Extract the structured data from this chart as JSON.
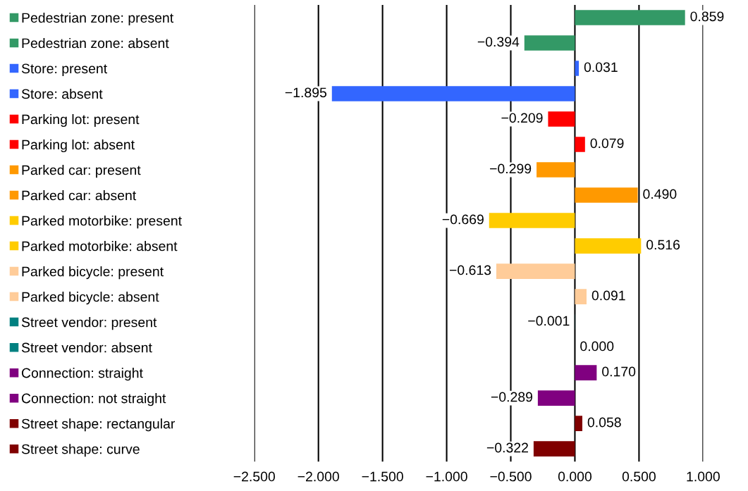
{
  "chart_data": {
    "type": "bar",
    "orientation": "horizontal",
    "categories": [
      "Pedestrian zone: present",
      "Pedestrian zone: absent",
      "Store: present",
      "Store: absent",
      "Parking lot: present",
      "Parking lot: absent",
      "Parked car: present",
      "Parked car: absent",
      "Parked motorbike: present",
      "Parked motorbike: absent",
      "Parked bicycle: present",
      "Parked bicycle: absent",
      "Street vendor: present",
      "Street vendor: absent",
      "Connection: straight",
      "Connection: not straight",
      "Street shape: rectangular",
      "Street shape: curve"
    ],
    "values": [
      0.859,
      -0.394,
      0.031,
      -1.895,
      -0.209,
      0.079,
      -0.299,
      0.49,
      -0.669,
      0.516,
      -0.613,
      0.091,
      -0.001,
      0.0,
      0.17,
      -0.289,
      0.058,
      -0.322
    ],
    "value_labels": [
      "0.859",
      "−0.394",
      "0.031",
      "−1.895",
      "−0.209",
      "0.079",
      "−0.299",
      "0.490",
      "−0.669",
      "0.516",
      "−0.613",
      "0.091",
      "−0.001",
      "0.000",
      "0.170",
      "−0.289",
      "0.058",
      "−0.322"
    ],
    "colors": [
      "#339966",
      "#339966",
      "#3366ff",
      "#3366ff",
      "#ff0000",
      "#ff0000",
      "#ff9900",
      "#ff9900",
      "#ffcc00",
      "#ffcc00",
      "#ffcc99",
      "#ffcc99",
      "#008080",
      "#008080",
      "#800080",
      "#800080",
      "#800000",
      "#800000"
    ],
    "xlim": [
      -2.5,
      1.0
    ],
    "xticks": [
      {
        "value": -2.5,
        "label": "−2.500"
      },
      {
        "value": -2.0,
        "label": "−2.000"
      },
      {
        "value": -1.5,
        "label": "−1.500"
      },
      {
        "value": -1.0,
        "label": "−1.000"
      },
      {
        "value": -0.5,
        "label": "−0.500"
      },
      {
        "value": 0,
        "label": "0.000"
      },
      {
        "value": 0.5,
        "label": "0.500"
      },
      {
        "value": 1.0,
        "label": "1.000"
      }
    ],
    "grid": "x"
  }
}
